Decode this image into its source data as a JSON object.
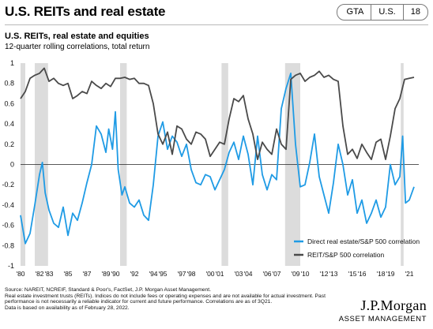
{
  "header": {
    "title": "U.S. REITs and real estate",
    "badges": [
      "GTA",
      "U.S.",
      "18"
    ]
  },
  "footnotes": [
    "Source: NAREIT, NCREIF, Standard & Poor's, FactSet, J.P. Morgan Asset Management.",
    "Real estate investment trusts (REITs). Indices do not include fees or operating expenses and are not available for actual investment. Past",
    "performance is not necessarily a reliable indicator for current and future performance. Correlations are as of 3Q21.",
    "Data is based on availability as of February 28, 2022."
  ],
  "logo": {
    "name": "J.P.Morgan",
    "subtitle": "ASSET MANAGEMENT"
  },
  "colors": {
    "direct": "#1f9be5",
    "reit": "#4a4a4a",
    "recession": "#dcdcdc"
  },
  "chart_data": {
    "type": "line",
    "title": "U.S. REITs, real estate and equities",
    "subtitle": "12-quarter rolling correlations, total return",
    "xlabel": "",
    "ylabel": "",
    "xlim": [
      1980,
      2022
    ],
    "ylim": [
      -1,
      1
    ],
    "yticks": [
      1,
      0.8,
      0.6,
      0.4,
      0.2,
      0,
      -0.2,
      -0.4,
      -0.6,
      -0.8,
      -1
    ],
    "ytick_labels": [
      "1",
      "0.8",
      "0.6",
      "0.4",
      "0.2",
      "0",
      "-0.2",
      "-0.4",
      "-0.6",
      "-0.8",
      "-1"
    ],
    "xticks": [
      1980,
      1982,
      1983,
      1985,
      1987,
      1989,
      1990,
      1992,
      1994,
      1995,
      1997,
      1998,
      2000,
      2001,
      2003,
      2004,
      2006,
      2007,
      2009,
      2010,
      2012,
      2013,
      2015,
      2016,
      2018,
      2019,
      2021
    ],
    "xtick_labels": [
      "'80",
      "'82",
      "'83",
      "'85",
      "'87",
      "'89",
      "'90",
      "'92",
      "'94",
      "'95",
      "'97",
      "'98",
      "'00",
      "'01",
      "'03",
      "'04",
      "'06",
      "'07",
      "'09",
      "'10",
      "'12",
      "'13",
      "'15",
      "'16",
      "'18",
      "'19",
      "'21"
    ],
    "grid": false,
    "legend": "bottom-right",
    "recessions": [
      [
        1980.0,
        1980.5
      ],
      [
        1981.5,
        1982.9
      ],
      [
        1990.5,
        1991.2
      ],
      [
        2001.2,
        2001.9
      ],
      [
        2007.9,
        2009.5
      ],
      [
        2020.1,
        2020.4
      ]
    ],
    "series": [
      {
        "name": "Direct real estate/S&P 500 correlation",
        "color": "#1f9be5",
        "x": [
          1980.0,
          1980.5,
          1981.0,
          1981.5,
          1982.0,
          1982.3,
          1982.6,
          1983.0,
          1983.5,
          1984.0,
          1984.5,
          1985.0,
          1985.5,
          1986.0,
          1986.5,
          1987.0,
          1987.5,
          1988.0,
          1988.5,
          1989.0,
          1989.3,
          1989.7,
          1990.0,
          1990.3,
          1990.7,
          1991.0,
          1991.5,
          1992.0,
          1992.5,
          1993.0,
          1993.5,
          1994.0,
          1994.5,
          1995.0,
          1995.5,
          1996.0,
          1996.5,
          1997.0,
          1997.5,
          1998.0,
          1998.5,
          1999.0,
          1999.5,
          2000.0,
          2000.5,
          2001.0,
          2001.5,
          2002.0,
          2002.5,
          2003.0,
          2003.5,
          2004.0,
          2004.5,
          2005.0,
          2005.5,
          2006.0,
          2006.5,
          2007.0,
          2007.5,
          2008.0,
          2008.5,
          2009.0,
          2009.5,
          2010.0,
          2010.5,
          2011.0,
          2011.5,
          2012.0,
          2012.5,
          2013.0,
          2013.5,
          2014.0,
          2014.5,
          2015.0,
          2015.5,
          2016.0,
          2016.5,
          2017.0,
          2017.5,
          2018.0,
          2018.5,
          2019.0,
          2019.5,
          2020.0,
          2020.3,
          2020.6,
          2021.0,
          2021.5
        ],
        "y": [
          -0.5,
          -0.78,
          -0.68,
          -0.4,
          -0.1,
          0.02,
          -0.28,
          -0.45,
          -0.58,
          -0.62,
          -0.42,
          -0.7,
          -0.48,
          -0.55,
          -0.38,
          -0.18,
          0.0,
          0.38,
          0.3,
          0.12,
          0.35,
          0.15,
          0.52,
          -0.05,
          -0.3,
          -0.22,
          -0.38,
          -0.42,
          -0.35,
          -0.5,
          -0.55,
          -0.2,
          0.28,
          0.42,
          0.15,
          0.28,
          0.22,
          0.08,
          0.2,
          -0.05,
          -0.18,
          -0.2,
          -0.1,
          -0.12,
          -0.25,
          -0.15,
          -0.05,
          0.12,
          0.22,
          0.05,
          0.28,
          0.1,
          -0.2,
          0.28,
          -0.1,
          -0.25,
          -0.1,
          -0.15,
          0.55,
          0.75,
          0.9,
          0.2,
          -0.22,
          -0.2,
          0.02,
          0.3,
          -0.12,
          -0.3,
          -0.48,
          -0.18,
          0.2,
          0.0,
          -0.3,
          -0.15,
          -0.48,
          -0.35,
          -0.58,
          -0.48,
          -0.35,
          -0.52,
          -0.42,
          0.0,
          -0.2,
          -0.12,
          0.28,
          -0.38,
          -0.35,
          -0.22
        ]
      },
      {
        "name": "REIT/S&P 500 correlation",
        "color": "#4a4a4a",
        "x": [
          1980.0,
          1980.5,
          1981.0,
          1981.5,
          1982.0,
          1982.5,
          1983.0,
          1983.5,
          1984.0,
          1984.5,
          1985.0,
          1985.5,
          1986.0,
          1986.5,
          1987.0,
          1987.5,
          1988.0,
          1988.5,
          1989.0,
          1989.5,
          1990.0,
          1990.5,
          1991.0,
          1991.5,
          1992.0,
          1992.5,
          1993.0,
          1993.5,
          1994.0,
          1994.5,
          1995.0,
          1995.5,
          1996.0,
          1996.5,
          1997.0,
          1997.5,
          1998.0,
          1998.5,
          1999.0,
          1999.5,
          2000.0,
          2000.5,
          2001.0,
          2001.5,
          2002.0,
          2002.5,
          2003.0,
          2003.5,
          2004.0,
          2004.5,
          2005.0,
          2005.5,
          2006.0,
          2006.5,
          2007.0,
          2007.5,
          2008.0,
          2008.5,
          2009.0,
          2009.5,
          2010.0,
          2010.5,
          2011.0,
          2011.5,
          2012.0,
          2012.5,
          2013.0,
          2013.5,
          2014.0,
          2014.5,
          2015.0,
          2015.5,
          2016.0,
          2016.5,
          2017.0,
          2017.5,
          2018.0,
          2018.5,
          2019.0,
          2019.5,
          2020.0,
          2020.5,
          2021.0,
          2021.5
        ],
        "y": [
          0.65,
          0.72,
          0.85,
          0.88,
          0.9,
          0.95,
          0.82,
          0.85,
          0.8,
          0.78,
          0.8,
          0.65,
          0.68,
          0.72,
          0.7,
          0.82,
          0.78,
          0.75,
          0.8,
          0.77,
          0.85,
          0.85,
          0.86,
          0.84,
          0.85,
          0.8,
          0.8,
          0.78,
          0.6,
          0.3,
          0.2,
          0.32,
          0.1,
          0.38,
          0.35,
          0.25,
          0.2,
          0.32,
          0.3,
          0.25,
          0.08,
          0.15,
          0.22,
          0.2,
          0.45,
          0.65,
          0.62,
          0.68,
          0.45,
          0.3,
          0.05,
          0.22,
          0.15,
          0.1,
          0.35,
          0.2,
          0.15,
          0.84,
          0.88,
          0.9,
          0.82,
          0.86,
          0.88,
          0.92,
          0.86,
          0.88,
          0.84,
          0.82,
          0.38,
          0.1,
          0.15,
          0.06,
          0.2,
          0.12,
          0.05,
          0.22,
          0.25,
          0.05,
          0.28,
          0.55,
          0.65,
          0.84,
          0.85,
          0.86
        ]
      }
    ]
  }
}
